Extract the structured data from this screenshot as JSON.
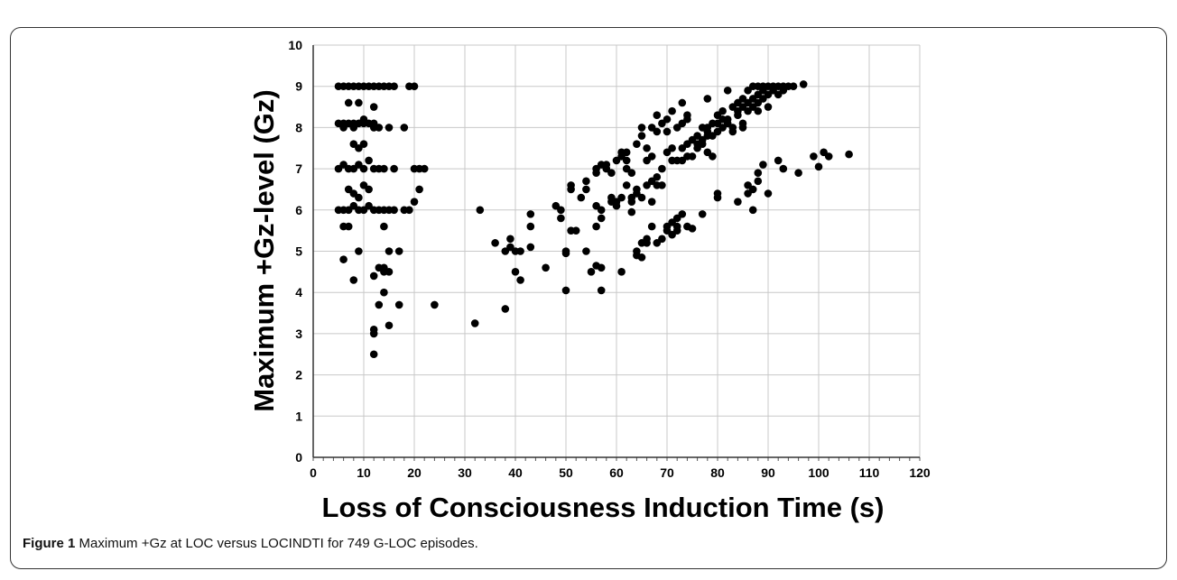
{
  "caption": {
    "label": "Figure 1",
    "text": "Maximum +Gz at LOC versus LOCINDTI for 749 G-LOC episodes."
  },
  "chart_data": {
    "type": "scatter",
    "title": "",
    "xlabel": "Loss of Consciousness Induction Time (s)",
    "ylabel": "Maximum +Gz-level (Gz)",
    "xlim": [
      0,
      120
    ],
    "ylim": [
      0,
      10
    ],
    "xticks": [
      "0",
      "10",
      "20",
      "30",
      "40",
      "50",
      "60",
      "70",
      "80",
      "90",
      "100",
      "110",
      "120"
    ],
    "yticks": [
      "0",
      "1",
      "2",
      "3",
      "4",
      "5",
      "6",
      "7",
      "8",
      "9",
      "10"
    ],
    "grid": true,
    "marker_color": "#000000",
    "points": [
      [
        5,
        9
      ],
      [
        6,
        9
      ],
      [
        7,
        9
      ],
      [
        8,
        9
      ],
      [
        9,
        9
      ],
      [
        10,
        9
      ],
      [
        11,
        9
      ],
      [
        12,
        9
      ],
      [
        13,
        9
      ],
      [
        14,
        9
      ],
      [
        15,
        9
      ],
      [
        16,
        9
      ],
      [
        19,
        9
      ],
      [
        20,
        9
      ],
      [
        5,
        8.1
      ],
      [
        6,
        8
      ],
      [
        6,
        8.1
      ],
      [
        7,
        8.1
      ],
      [
        8,
        8
      ],
      [
        8,
        8.1
      ],
      [
        9,
        8.1
      ],
      [
        10,
        8.1
      ],
      [
        10,
        8.2
      ],
      [
        11,
        8.1
      ],
      [
        12,
        8.1
      ],
      [
        12,
        8
      ],
      [
        13,
        8
      ],
      [
        15,
        8
      ],
      [
        18,
        8
      ],
      [
        5,
        7
      ],
      [
        6,
        7.1
      ],
      [
        7,
        7
      ],
      [
        8,
        7
      ],
      [
        9,
        7.1
      ],
      [
        10,
        7
      ],
      [
        11,
        7.2
      ],
      [
        12,
        7
      ],
      [
        13,
        7
      ],
      [
        14,
        7
      ],
      [
        16,
        7
      ],
      [
        20,
        7
      ],
      [
        21,
        7
      ],
      [
        22,
        7
      ],
      [
        5,
        6
      ],
      [
        6,
        6
      ],
      [
        7,
        6
      ],
      [
        8,
        6.1
      ],
      [
        9,
        6
      ],
      [
        10,
        6
      ],
      [
        11,
        6.1
      ],
      [
        12,
        6
      ],
      [
        13,
        6
      ],
      [
        14,
        6
      ],
      [
        15,
        6
      ],
      [
        16,
        6
      ],
      [
        18,
        6
      ],
      [
        19,
        6
      ],
      [
        7,
        8.6
      ],
      [
        9,
        8.6
      ],
      [
        12,
        8.5
      ],
      [
        8,
        7.6
      ],
      [
        10,
        7.6
      ],
      [
        9,
        7.5
      ],
      [
        10,
        6.6
      ],
      [
        7,
        6.5
      ],
      [
        8,
        6.4
      ],
      [
        9,
        6.3
      ],
      [
        11,
        6.5
      ],
      [
        6,
        5.6
      ],
      [
        7,
        5.6
      ],
      [
        14,
        5.6
      ],
      [
        6,
        4.8
      ],
      [
        9,
        5
      ],
      [
        8,
        4.3
      ],
      [
        15,
        5
      ],
      [
        17,
        5
      ],
      [
        12,
        4.4
      ],
      [
        13,
        4.6
      ],
      [
        14,
        4.6
      ],
      [
        14,
        4.5
      ],
      [
        15,
        4.5
      ],
      [
        14,
        4
      ],
      [
        13,
        3.7
      ],
      [
        17,
        3.7
      ],
      [
        15,
        3.2
      ],
      [
        12,
        3.1
      ],
      [
        12,
        3
      ],
      [
        12,
        2.5
      ],
      [
        21,
        6.5
      ],
      [
        20,
        6.2
      ],
      [
        24,
        3.7
      ],
      [
        32,
        3.25
      ],
      [
        33,
        6
      ],
      [
        36,
        5.2
      ],
      [
        38,
        3.6
      ],
      [
        38,
        5
      ],
      [
        39,
        5.1
      ],
      [
        39,
        5.3
      ],
      [
        40,
        5
      ],
      [
        40,
        4.5
      ],
      [
        41,
        4.3
      ],
      [
        41,
        5
      ],
      [
        43,
        5.1
      ],
      [
        43,
        5.9
      ],
      [
        43,
        5.6
      ],
      [
        46,
        4.6
      ],
      [
        48,
        6.1
      ],
      [
        49,
        6
      ],
      [
        49,
        5.8
      ],
      [
        50,
        5
      ],
      [
        50,
        4.95
      ],
      [
        50,
        4.05
      ],
      [
        51,
        6.6
      ],
      [
        51,
        6.5
      ],
      [
        51,
        5.5
      ],
      [
        52,
        5.5
      ],
      [
        53,
        6.3
      ],
      [
        54,
        6.5
      ],
      [
        54,
        6.7
      ],
      [
        54,
        5
      ],
      [
        55,
        4.5
      ],
      [
        56,
        7
      ],
      [
        56,
        6.9
      ],
      [
        56,
        5.6
      ],
      [
        56,
        4.65
      ],
      [
        56,
        6.1
      ],
      [
        57,
        7.1
      ],
      [
        57,
        6
      ],
      [
        57,
        5.8
      ],
      [
        57,
        4.6
      ],
      [
        57,
        4.05
      ],
      [
        58,
        7
      ],
      [
        58,
        7.1
      ],
      [
        59,
        6.9
      ],
      [
        59,
        6.3
      ],
      [
        59,
        6.2
      ],
      [
        60,
        7.2
      ],
      [
        60,
        6.1
      ],
      [
        60,
        6.2
      ],
      [
        61,
        7.3
      ],
      [
        61,
        7.4
      ],
      [
        61,
        6.3
      ],
      [
        61,
        4.5
      ],
      [
        62,
        7.4
      ],
      [
        62,
        7.2
      ],
      [
        62,
        7
      ],
      [
        62,
        6.6
      ],
      [
        63,
        6.9
      ],
      [
        63,
        6.3
      ],
      [
        63,
        6.2
      ],
      [
        63,
        5.95
      ],
      [
        64,
        7.6
      ],
      [
        64,
        6.5
      ],
      [
        64,
        6.4
      ],
      [
        64,
        5
      ],
      [
        64,
        4.9
      ],
      [
        65,
        7.8
      ],
      [
        65,
        8
      ],
      [
        65,
        6.3
      ],
      [
        65,
        4.85
      ],
      [
        65,
        5.2
      ],
      [
        66,
        7.2
      ],
      [
        66,
        7.5
      ],
      [
        66,
        6.6
      ],
      [
        66,
        5.3
      ],
      [
        66,
        5.2
      ],
      [
        67,
        8
      ],
      [
        67,
        7.3
      ],
      [
        67,
        6.2
      ],
      [
        67,
        6.7
      ],
      [
        67,
        5.6
      ],
      [
        68,
        8.3
      ],
      [
        68,
        7.9
      ],
      [
        68,
        6.8
      ],
      [
        68,
        6.6
      ],
      [
        68,
        5.2
      ],
      [
        69,
        8.1
      ],
      [
        69,
        7
      ],
      [
        69,
        6.6
      ],
      [
        69,
        5.3
      ],
      [
        70,
        8.2
      ],
      [
        70,
        7.9
      ],
      [
        70,
        7.4
      ],
      [
        70,
        5.5
      ],
      [
        70,
        5.6
      ],
      [
        71,
        8.4
      ],
      [
        71,
        7.5
      ],
      [
        71,
        7.2
      ],
      [
        71,
        5.7
      ],
      [
        71,
        5.4
      ],
      [
        72,
        8
      ],
      [
        72,
        7.2
      ],
      [
        72,
        5.8
      ],
      [
        72,
        5.6
      ],
      [
        72,
        5.5
      ],
      [
        73,
        8.6
      ],
      [
        73,
        8.1
      ],
      [
        73,
        7.5
      ],
      [
        73,
        7.2
      ],
      [
        73,
        5.9
      ],
      [
        74,
        8.3
      ],
      [
        74,
        8.2
      ],
      [
        74,
        7.6
      ],
      [
        74,
        7.3
      ],
      [
        74,
        5.6
      ],
      [
        75,
        7.7
      ],
      [
        75,
        7.3
      ],
      [
        75,
        5.55
      ],
      [
        76,
        7.8
      ],
      [
        76,
        7.6
      ],
      [
        76,
        7.5
      ],
      [
        77,
        8
      ],
      [
        77,
        7.7
      ],
      [
        77,
        7.6
      ],
      [
        77,
        5.9
      ],
      [
        78,
        8.7
      ],
      [
        78,
        8
      ],
      [
        78,
        7.9
      ],
      [
        78,
        7.8
      ],
      [
        78,
        7.4
      ],
      [
        79,
        8.1
      ],
      [
        79,
        7.3
      ],
      [
        79,
        7.8
      ],
      [
        80,
        8.3
      ],
      [
        80,
        8.1
      ],
      [
        80,
        7.9
      ],
      [
        80,
        6.4
      ],
      [
        80,
        6.3
      ],
      [
        81,
        8.4
      ],
      [
        81,
        8.2
      ],
      [
        81,
        8
      ],
      [
        82,
        8.9
      ],
      [
        82,
        8.2
      ],
      [
        82,
        8.1
      ],
      [
        83,
        8.5
      ],
      [
        83,
        8
      ],
      [
        83,
        7.9
      ],
      [
        84,
        8.6
      ],
      [
        84,
        8.4
      ],
      [
        84,
        8.3
      ],
      [
        84,
        6.2
      ],
      [
        85,
        8.7
      ],
      [
        85,
        8.5
      ],
      [
        85,
        8.1
      ],
      [
        85,
        8
      ],
      [
        86,
        8.9
      ],
      [
        86,
        8.6
      ],
      [
        86,
        8.4
      ],
      [
        86,
        6.6
      ],
      [
        86,
        6.4
      ],
      [
        87,
        9
      ],
      [
        87,
        8.7
      ],
      [
        87,
        8.5
      ],
      [
        87,
        6
      ],
      [
        87,
        6.5
      ],
      [
        88,
        9
      ],
      [
        88,
        8.8
      ],
      [
        88,
        8.6
      ],
      [
        88,
        8.4
      ],
      [
        88,
        6.7
      ],
      [
        88,
        6.9
      ],
      [
        89,
        9
      ],
      [
        89,
        8.9
      ],
      [
        89,
        8.7
      ],
      [
        89,
        7.1
      ],
      [
        90,
        9
      ],
      [
        90,
        8.8
      ],
      [
        90,
        8.5
      ],
      [
        90,
        6.4
      ],
      [
        91,
        9
      ],
      [
        91,
        8.9
      ],
      [
        92,
        9
      ],
      [
        92,
        8.8
      ],
      [
        92,
        7.2
      ],
      [
        93,
        9
      ],
      [
        93,
        8.9
      ],
      [
        93,
        7
      ],
      [
        94,
        9
      ],
      [
        95,
        9
      ],
      [
        96,
        6.9
      ],
      [
        97,
        9.05
      ],
      [
        99,
        7.3
      ],
      [
        100,
        7.05
      ],
      [
        101,
        7.4
      ],
      [
        102,
        7.3
      ],
      [
        106,
        7.35
      ]
    ]
  }
}
